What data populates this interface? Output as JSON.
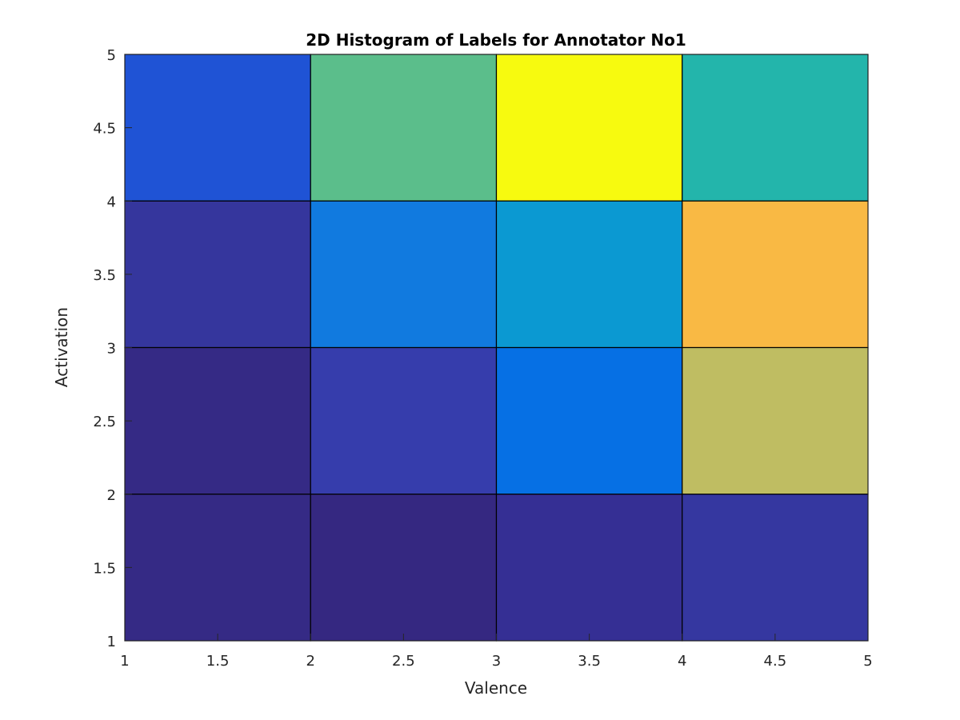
{
  "chart_data": {
    "type": "heatmap",
    "title": "2D Histogram of Labels for Annotator No1",
    "xlabel": "Valence",
    "ylabel": "Activation",
    "xlim": [
      1,
      5
    ],
    "ylim": [
      1,
      5
    ],
    "x_ticks": [
      "1",
      "1.5",
      "2",
      "2.5",
      "3",
      "3.5",
      "4",
      "4.5",
      "5"
    ],
    "y_ticks": [
      "1",
      "1.5",
      "2",
      "2.5",
      "3",
      "3.5",
      "4",
      "4.5",
      "5"
    ],
    "x_bin_edges": [
      1,
      2,
      3,
      4,
      5
    ],
    "y_bin_edges": [
      1,
      2,
      3,
      4,
      5
    ],
    "colormap": "parula",
    "grid": false,
    "cells": [
      {
        "x": [
          1,
          2
        ],
        "y": [
          4,
          5
        ],
        "color": "#1f53d5"
      },
      {
        "x": [
          2,
          3
        ],
        "y": [
          4,
          5
        ],
        "color": "#5bbe8b"
      },
      {
        "x": [
          3,
          4
        ],
        "y": [
          4,
          5
        ],
        "color": "#f7fa0f"
      },
      {
        "x": [
          4,
          5
        ],
        "y": [
          4,
          5
        ],
        "color": "#23b5ab"
      },
      {
        "x": [
          1,
          2
        ],
        "y": [
          3,
          4
        ],
        "color": "#35369d"
      },
      {
        "x": [
          2,
          3
        ],
        "y": [
          3,
          4
        ],
        "color": "#117adf"
      },
      {
        "x": [
          3,
          4
        ],
        "y": [
          3,
          4
        ],
        "color": "#0b99d2"
      },
      {
        "x": [
          4,
          5
        ],
        "y": [
          3,
          4
        ],
        "color": "#f9b944"
      },
      {
        "x": [
          1,
          2
        ],
        "y": [
          2,
          3
        ],
        "color": "#352a85"
      },
      {
        "x": [
          2,
          3
        ],
        "y": [
          2,
          3
        ],
        "color": "#363dac"
      },
      {
        "x": [
          3,
          4
        ],
        "y": [
          2,
          3
        ],
        "color": "#0670e4"
      },
      {
        "x": [
          4,
          5
        ],
        "y": [
          2,
          3
        ],
        "color": "#bfbd62"
      },
      {
        "x": [
          1,
          2
        ],
        "y": [
          1,
          2
        ],
        "color": "#352a85"
      },
      {
        "x": [
          2,
          3
        ],
        "y": [
          1,
          2
        ],
        "color": "#352881"
      },
      {
        "x": [
          3,
          4
        ],
        "y": [
          1,
          2
        ],
        "color": "#352f94"
      },
      {
        "x": [
          4,
          5
        ],
        "y": [
          1,
          2
        ],
        "color": "#3537a0"
      }
    ]
  }
}
